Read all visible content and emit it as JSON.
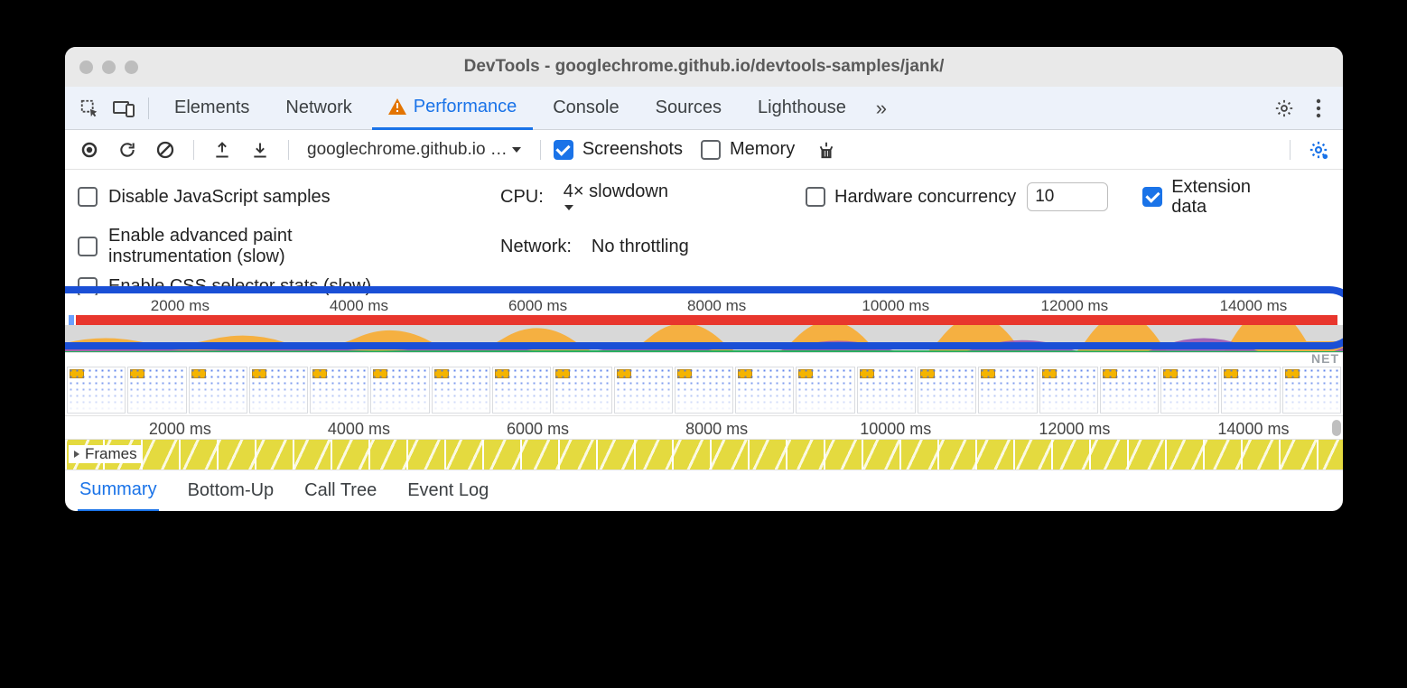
{
  "window": {
    "title": "DevTools - googlechrome.github.io/devtools-samples/jank/",
    "traffic_color": "#bdbdbd",
    "titlebar_bg": "#e9e9e9"
  },
  "tabs": {
    "items": [
      "Elements",
      "Network",
      "Performance",
      "Console",
      "Sources",
      "Lighthouse"
    ],
    "active_index": 2,
    "active_has_warning": true,
    "tabstrip_bg": "#edf2fa",
    "active_color": "#1a73e8"
  },
  "toolbar": {
    "origin_dropdown": "googlechrome.github.io …",
    "screenshots": {
      "label": "Screenshots",
      "checked": true
    },
    "memory": {
      "label": "Memory",
      "checked": false
    }
  },
  "settings": {
    "disable_js": {
      "label": "Disable JavaScript samples",
      "checked": false
    },
    "enable_paint": {
      "label": "Enable advanced paint instrumentation (slow)",
      "checked": false
    },
    "enable_css": {
      "label": "Enable CSS selector stats (slow)",
      "checked": false
    },
    "cpu": {
      "label": "CPU:",
      "value": "4× slowdown"
    },
    "network": {
      "label": "Network:",
      "value": "No throttling"
    },
    "hw_concurrency": {
      "label": "Hardware concurrency",
      "checked": false,
      "value": "10"
    },
    "extension_data": {
      "label": "Extension data",
      "checked": true
    }
  },
  "timeline": {
    "ticks_ms": [
      2000,
      4000,
      6000,
      8000,
      10000,
      12000,
      14000
    ],
    "tick_positions_pct": [
      9,
      23,
      37,
      51,
      65,
      79,
      93
    ],
    "tick_suffix": " ms",
    "highlight_color": "#1a4fd6",
    "redbar_color": "#e8362d",
    "cpu_colors": {
      "base": "#d8d8d8",
      "orange": "#f5b041",
      "purple": "#9b59b6",
      "green": "#27ae60"
    },
    "net_label": "NET",
    "filmstrip_thumbs": 21,
    "frames_label": "Frames",
    "frames_fill": "#e4da3f"
  },
  "bottom_tabs": {
    "items": [
      "Summary",
      "Bottom-Up",
      "Call Tree",
      "Event Log"
    ],
    "active_index": 0
  }
}
